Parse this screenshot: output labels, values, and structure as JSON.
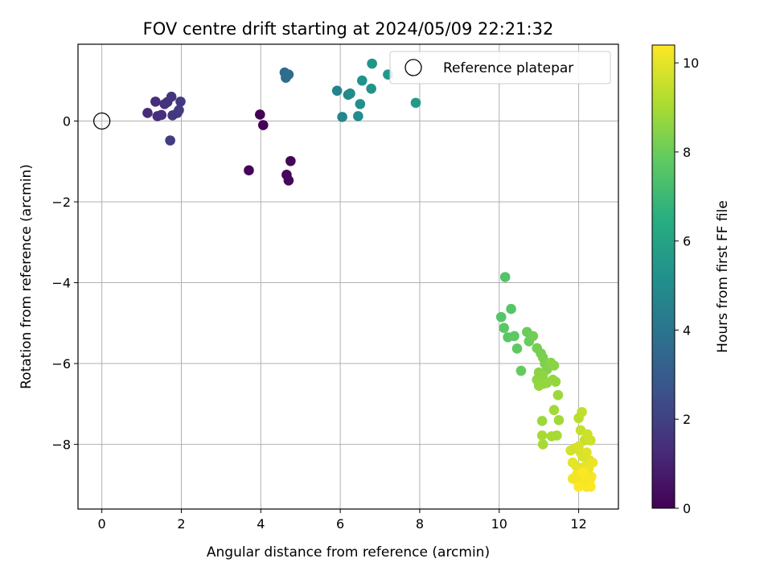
{
  "chart_data": {
    "type": "scatter",
    "title": "FOV centre drift starting at 2024/05/09 22:21:32",
    "xlabel": "Angular distance from reference (arcmin)",
    "ylabel": "Rotation from reference (arcmin)",
    "xlim": [
      -0.6,
      13.0
    ],
    "ylim": [
      -9.6,
      1.9
    ],
    "xticks": [
      0,
      2,
      4,
      6,
      8,
      10,
      12
    ],
    "yticks": [
      0,
      -2,
      -4,
      -6,
      -8
    ],
    "grid": true,
    "legend": {
      "placement": "top-right",
      "entries": [
        "Reference platepar"
      ]
    },
    "reference_point": {
      "label": "Reference platepar",
      "x": 0,
      "y": 0
    },
    "colorbar": {
      "label": "Hours from first FF file",
      "colormap": "viridis",
      "range": [
        0,
        10.4
      ],
      "ticks": [
        0,
        2,
        4,
        6,
        8,
        10
      ]
    },
    "series": [
      {
        "points": [
          [
            3.98,
            0.16,
            0.0
          ],
          [
            4.06,
            -0.1,
            0.05
          ],
          [
            3.7,
            -1.22,
            0.1
          ],
          [
            4.75,
            -0.99,
            0.15
          ],
          [
            4.65,
            -1.33,
            0.2
          ],
          [
            4.7,
            -1.47,
            0.25
          ],
          [
            1.15,
            0.2,
            1.3
          ],
          [
            1.35,
            0.48,
            1.35
          ],
          [
            1.4,
            0.12,
            1.4
          ],
          [
            1.5,
            0.15,
            1.45
          ],
          [
            1.58,
            0.42,
            1.5
          ],
          [
            1.65,
            0.47,
            1.55
          ],
          [
            1.75,
            0.6,
            1.6
          ],
          [
            1.78,
            0.14,
            1.65
          ],
          [
            1.9,
            0.2,
            1.7
          ],
          [
            1.98,
            0.48,
            1.75
          ],
          [
            1.94,
            0.27,
            1.8
          ],
          [
            1.72,
            -0.48,
            1.85
          ],
          [
            4.6,
            1.2,
            3.6
          ],
          [
            4.7,
            1.15,
            3.65
          ],
          [
            4.63,
            1.07,
            3.7
          ],
          [
            5.92,
            0.75,
            4.6
          ],
          [
            6.05,
            0.1,
            4.7
          ],
          [
            6.2,
            0.65,
            4.8
          ],
          [
            6.25,
            0.68,
            4.9
          ],
          [
            6.45,
            0.12,
            5.0
          ],
          [
            6.5,
            0.42,
            5.1
          ],
          [
            6.55,
            1.0,
            5.2
          ],
          [
            6.78,
            0.8,
            5.3
          ],
          [
            6.8,
            1.42,
            5.4
          ],
          [
            7.2,
            1.15,
            5.5
          ],
          [
            7.9,
            0.45,
            5.6
          ],
          [
            10.15,
            -3.86,
            7.5
          ],
          [
            10.3,
            -4.65,
            7.6
          ],
          [
            10.05,
            -4.85,
            7.6
          ],
          [
            10.12,
            -5.12,
            7.7
          ],
          [
            10.22,
            -5.35,
            7.7
          ],
          [
            10.38,
            -5.32,
            7.8
          ],
          [
            10.45,
            -5.63,
            7.8
          ],
          [
            10.55,
            -6.18,
            7.9
          ],
          [
            10.7,
            -5.22,
            8.0
          ],
          [
            10.75,
            -5.45,
            8.0
          ],
          [
            10.85,
            -5.32,
            8.1
          ],
          [
            10.95,
            -5.62,
            8.2
          ],
          [
            11.05,
            -5.75,
            8.2
          ],
          [
            11.1,
            -5.85,
            8.3
          ],
          [
            11.15,
            -6.0,
            8.3
          ],
          [
            11.2,
            -6.15,
            8.4
          ],
          [
            11.25,
            -6.05,
            8.4
          ],
          [
            11.3,
            -5.98,
            8.5
          ],
          [
            11.38,
            -6.05,
            8.5
          ],
          [
            11.0,
            -6.22,
            8.5
          ],
          [
            11.1,
            -6.3,
            8.6
          ],
          [
            11.2,
            -6.48,
            8.6
          ],
          [
            10.95,
            -6.4,
            8.6
          ],
          [
            11.0,
            -6.55,
            8.7
          ],
          [
            11.12,
            -6.5,
            8.7
          ],
          [
            11.35,
            -6.4,
            8.7
          ],
          [
            11.42,
            -6.45,
            8.7
          ],
          [
            11.48,
            -6.78,
            8.8
          ],
          [
            11.08,
            -7.42,
            8.8
          ],
          [
            11.38,
            -7.15,
            8.9
          ],
          [
            11.5,
            -7.4,
            8.9
          ],
          [
            11.32,
            -7.8,
            9.0
          ],
          [
            11.45,
            -7.78,
            9.0
          ],
          [
            11.08,
            -7.78,
            9.0
          ],
          [
            11.1,
            -8.0,
            9.0
          ],
          [
            12.0,
            -7.35,
            9.3
          ],
          [
            12.08,
            -7.2,
            9.4
          ],
          [
            12.05,
            -7.65,
            9.5
          ],
          [
            12.15,
            -7.9,
            9.5
          ],
          [
            12.22,
            -7.75,
            9.6
          ],
          [
            12.3,
            -7.9,
            9.6
          ],
          [
            11.8,
            -8.15,
            9.7
          ],
          [
            11.9,
            -8.1,
            9.7
          ],
          [
            12.0,
            -8.05,
            9.8
          ],
          [
            12.05,
            -8.2,
            9.8
          ],
          [
            12.1,
            -8.3,
            9.8
          ],
          [
            12.2,
            -8.2,
            9.9
          ],
          [
            12.28,
            -8.4,
            9.9
          ],
          [
            11.85,
            -8.45,
            10.0
          ],
          [
            11.95,
            -8.55,
            10.0
          ],
          [
            12.05,
            -8.6,
            10.0
          ],
          [
            12.15,
            -8.55,
            10.0
          ],
          [
            12.25,
            -8.6,
            10.1
          ],
          [
            12.35,
            -8.45,
            10.1
          ],
          [
            11.85,
            -8.85,
            10.2
          ],
          [
            11.95,
            -8.75,
            10.2
          ],
          [
            12.0,
            -8.95,
            10.2
          ],
          [
            12.1,
            -8.8,
            10.2
          ],
          [
            12.15,
            -8.95,
            10.3
          ],
          [
            12.2,
            -9.05,
            10.3
          ],
          [
            12.28,
            -8.9,
            10.3
          ],
          [
            12.32,
            -8.8,
            10.3
          ],
          [
            12.0,
            -9.05,
            10.4
          ],
          [
            12.1,
            -8.7,
            10.4
          ],
          [
            12.3,
            -9.05,
            10.4
          ]
        ]
      }
    ]
  }
}
